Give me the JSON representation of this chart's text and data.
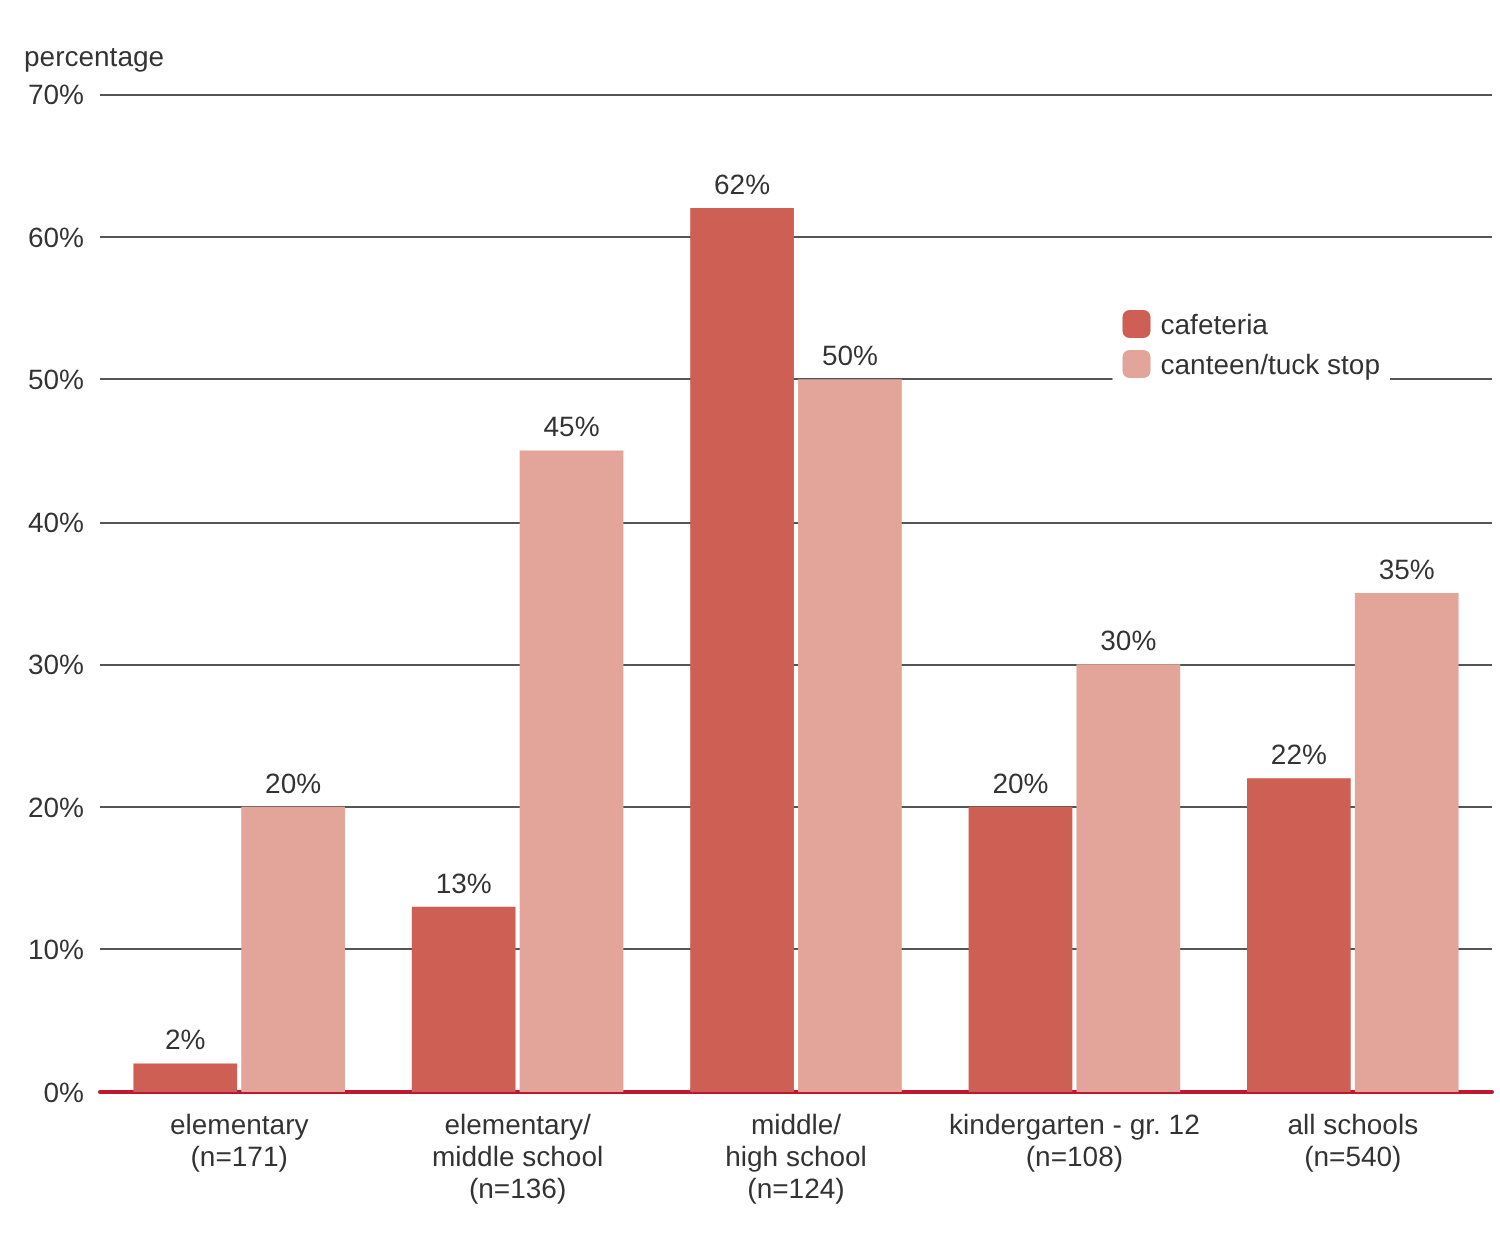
{
  "chart_data": {
    "type": "bar",
    "ylabel": "percentage",
    "categories": [
      "elementary\n(n=171)",
      "elementary/\nmiddle school\n(n=136)",
      "middle/\nhigh school\n(n=124)",
      "kindergarten - gr. 12\n(n=108)",
      "all schools\n(n=540)"
    ],
    "series": [
      {
        "name": "cafeteria",
        "color": "#cd5f55",
        "values": [
          2,
          13,
          62,
          20,
          22
        ],
        "value_labels": [
          "2%",
          "13%",
          "62%",
          "20%",
          "22%"
        ]
      },
      {
        "name": "canteen/tuck stop",
        "color": "#e3a59a",
        "values": [
          20,
          45,
          50,
          30,
          35
        ],
        "value_labels": [
          "20%",
          "45%",
          "50%",
          "30%",
          "35%"
        ]
      }
    ],
    "ylim": [
      0,
      70
    ],
    "yticks": [
      {
        "value": 0,
        "label": "0%"
      },
      {
        "value": 10,
        "label": "10%"
      },
      {
        "value": 20,
        "label": "20%"
      },
      {
        "value": 30,
        "label": "30%"
      },
      {
        "value": 40,
        "label": "40%"
      },
      {
        "value": 50,
        "label": "50%"
      },
      {
        "value": 60,
        "label": "60%"
      },
      {
        "value": 70,
        "label": "70%"
      }
    ],
    "grid": "y",
    "legend": "top right"
  }
}
